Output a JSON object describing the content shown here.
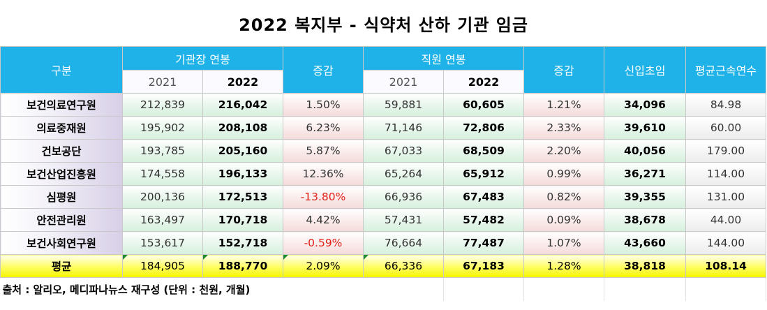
{
  "title": "2022 복지부 - 식약처 산하 기관 임금",
  "header": {
    "category": "구분",
    "ceo_salary": "기관장 연봉",
    "change1": "증감",
    "staff_salary": "직원 연봉",
    "change2": "증감",
    "starting_salary": "신입초임",
    "avg_tenure": "평균근속연수",
    "year_2021": "2021",
    "year_2022": "2022"
  },
  "rows": [
    {
      "name": "보건의료연구원",
      "ceo_2021": "212,839",
      "ceo_2022": "216,042",
      "ceo_change": "1.50%",
      "staff_2021": "59,881",
      "staff_2022": "60,605",
      "staff_change": "1.21%",
      "starting": "34,096",
      "tenure": "84.98"
    },
    {
      "name": "의료중재원",
      "ceo_2021": "195,902",
      "ceo_2022": "208,108",
      "ceo_change": "6.23%",
      "staff_2021": "71,146",
      "staff_2022": "72,806",
      "staff_change": "2.33%",
      "starting": "39,610",
      "tenure": "60.00"
    },
    {
      "name": "건보공단",
      "ceo_2021": "193,785",
      "ceo_2022": "205,160",
      "ceo_change": "5.87%",
      "staff_2021": "67,033",
      "staff_2022": "68,509",
      "staff_change": "2.20%",
      "starting": "40,056",
      "tenure": "179.00"
    },
    {
      "name": "보건산업진흥원",
      "ceo_2021": "174,558",
      "ceo_2022": "196,133",
      "ceo_change": "12.36%",
      "staff_2021": "65,264",
      "staff_2022": "65,912",
      "staff_change": "0.99%",
      "starting": "36,271",
      "tenure": "114.00"
    },
    {
      "name": "심평원",
      "ceo_2021": "200,136",
      "ceo_2022": "172,513",
      "ceo_change": "-13.80%",
      "staff_2021": "66,936",
      "staff_2022": "67,483",
      "staff_change": "0.82%",
      "starting": "39,355",
      "tenure": "131.00"
    },
    {
      "name": "안전관리원",
      "ceo_2021": "163,497",
      "ceo_2022": "170,718",
      "ceo_change": "4.42%",
      "staff_2021": "57,431",
      "staff_2022": "57,482",
      "staff_change": "0.09%",
      "starting": "38,678",
      "tenure": "44.00"
    },
    {
      "name": "보건사회연구원",
      "ceo_2021": "153,617",
      "ceo_2022": "152,718",
      "ceo_change": "-0.59%",
      "staff_2021": "76,664",
      "staff_2022": "77,487",
      "staff_change": "1.07%",
      "starting": "43,660",
      "tenure": "144.00"
    }
  ],
  "average": {
    "name": "평균",
    "ceo_2021": "184,905",
    "ceo_2022": "188,770",
    "ceo_change": "2.09%",
    "staff_2021": "66,336",
    "staff_2022": "67,183",
    "staff_change": "1.28%",
    "starting": "38,818",
    "tenure": "108.14"
  },
  "source": "출처 : 알리오, 메디파나뉴스 재구성 (단위 : 천원, 개월)",
  "colors": {
    "header_bg": "#1fb2e9",
    "negative": "#e0201a",
    "average_bg": "#fffe6a"
  }
}
